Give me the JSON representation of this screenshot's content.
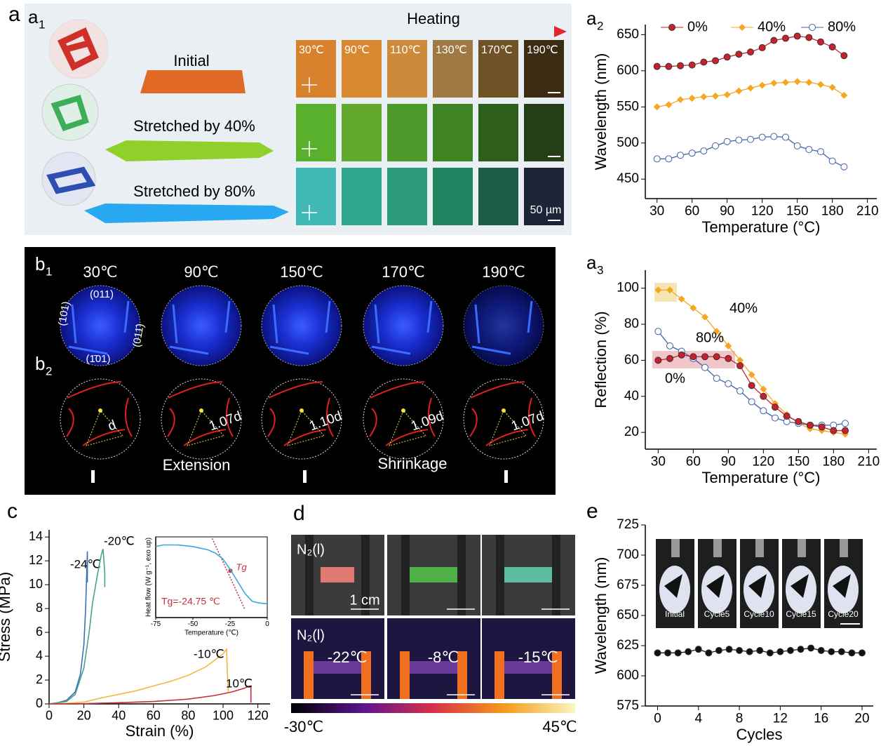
{
  "panel_labels": [
    {
      "text": "a"
    },
    {
      "text": "a",
      "sub": "1"
    },
    {
      "text": "a",
      "sub": "2"
    },
    {
      "text": "a",
      "sub": "3"
    },
    {
      "text": "b"
    },
    {
      "text": "b",
      "sub": "1"
    },
    {
      "text": "b",
      "sub": "2"
    },
    {
      "text": "c"
    },
    {
      "text": "d"
    },
    {
      "text": "e"
    }
  ],
  "panel_a1": {
    "heating": "Heating",
    "temperatures": [
      "30℃",
      "90℃",
      "110℃",
      "130℃",
      "170℃",
      "190℃"
    ],
    "samples": [
      "Initial",
      "Stretched by 40%",
      "Stretched by 80%"
    ],
    "scale_bar": "50 µm"
  },
  "panel_b": {
    "temperatures": [
      "30℃",
      "90℃",
      "150℃",
      "170℃",
      "190℃"
    ],
    "planes": [
      "(011)",
      "(101)",
      "(011̄)",
      "(1̄01)"
    ],
    "spacings": [
      "d",
      "1.07d",
      "1.10d",
      "1.09d",
      "1.07d"
    ],
    "extension": "Extension",
    "shrinkage": "Shrinkage"
  },
  "panel_d": {
    "atmosphere": [
      "N₂(l)",
      "N₂(l)"
    ],
    "scale_bar": "1 cm",
    "temperatures": [
      "-22℃",
      "-8℃",
      "-15℃"
    ],
    "colorbar": [
      "-30℃",
      "45℃"
    ]
  },
  "panel_e_photos": [
    "Initial",
    "Cycle5",
    "Cycle10",
    "Cycle15",
    "Cycle20"
  ],
  "chart_data": [
    {
      "type": "line",
      "xlabel": "Temperature (°C)",
      "ylabel": "Wavelength (nm)",
      "legend": "top",
      "xlim": [
        20,
        218
      ],
      "ylim": [
        423,
        664
      ],
      "xticks": [
        30,
        60,
        90,
        120,
        150,
        180,
        210
      ],
      "yticks": [
        450,
        500,
        550,
        600,
        650
      ],
      "x": [
        30,
        40,
        50,
        60,
        70,
        80,
        90,
        100,
        110,
        120,
        130,
        140,
        150,
        160,
        170,
        180,
        190
      ],
      "series": [
        {
          "name": "0%",
          "color": "#c8202e",
          "marker": "circle",
          "values": [
            606,
            606,
            607,
            608,
            612,
            614,
            619,
            623,
            626,
            632,
            642,
            645,
            648,
            646,
            640,
            633,
            621
          ]
        },
        {
          "name": "40%",
          "color": "#f5a623",
          "marker": "diamond",
          "values": [
            550,
            553,
            560,
            562,
            564,
            565,
            567,
            572,
            576,
            580,
            583,
            584,
            585,
            584,
            581,
            577,
            566
          ]
        },
        {
          "name": "80%",
          "color": "#3d5fa8",
          "marker": "open-circle",
          "values": [
            478,
            478,
            483,
            486,
            489,
            496,
            502,
            504,
            505,
            508,
            509,
            508,
            496,
            491,
            488,
            475,
            467
          ]
        }
      ]
    },
    {
      "type": "line",
      "xlabel": "Temperature (°C)",
      "ylabel": "Reflection (%)",
      "legend": "inline",
      "xlim": [
        19,
        217
      ],
      "ylim": [
        10.7,
        110
      ],
      "xticks": [
        30,
        60,
        90,
        120,
        150,
        180,
        210
      ],
      "yticks": [
        20,
        40,
        60,
        80,
        100
      ],
      "x": [
        30,
        40,
        50,
        60,
        70,
        80,
        90,
        100,
        110,
        120,
        130,
        140,
        150,
        160,
        170,
        180,
        190
      ],
      "series": [
        {
          "name": "40%",
          "color": "#f5a623",
          "marker": "diamond",
          "values": [
            99,
            99,
            94,
            89,
            84,
            76,
            68,
            60,
            52,
            44,
            36,
            30,
            25,
            22,
            21,
            20,
            19
          ]
        },
        {
          "name": "80%",
          "color": "#3d5fa8",
          "marker": "open-circle",
          "values": [
            76,
            68,
            65,
            61,
            56,
            50,
            47,
            43,
            37,
            32,
            28,
            26,
            25,
            24,
            24,
            24,
            25
          ]
        },
        {
          "name": "0%",
          "color": "#c8202e",
          "marker": "circle",
          "values": [
            60,
            61,
            63,
            62,
            62,
            62,
            61,
            57,
            46,
            40,
            34,
            29,
            26,
            24,
            23,
            21,
            21
          ]
        }
      ]
    },
    {
      "type": "line",
      "xlabel": "Strain (%)",
      "ylabel": "Stress (MPa)",
      "legend": "inline",
      "xlim": [
        0,
        127
      ],
      "ylim": [
        0,
        14.6
      ],
      "xticks": [
        0,
        20,
        40,
        60,
        80,
        100,
        120
      ],
      "yticks": [
        0,
        2,
        4,
        6,
        8,
        10,
        12,
        14
      ],
      "series": [
        {
          "name": "-24℃",
          "color": "#3d6fb6",
          "marker": "none",
          "x": [
            0,
            5,
            10,
            15,
            18,
            20,
            21,
            22,
            22
          ],
          "values": [
            0,
            0.1,
            0.3,
            1,
            2.5,
            5,
            8,
            12.8,
            10.2
          ]
        },
        {
          "name": "-20℃",
          "color": "#4aa08a",
          "marker": "none",
          "x": [
            0,
            10,
            15,
            20,
            23,
            25,
            28,
            30,
            31,
            32,
            32
          ],
          "values": [
            0,
            0.2,
            0.8,
            3,
            6,
            8.5,
            11,
            12.5,
            13,
            11,
            9.8
          ]
        },
        {
          "name": "-10℃",
          "color": "#f5b642",
          "marker": "none",
          "x": [
            0,
            10,
            20,
            30,
            40,
            50,
            60,
            70,
            80,
            90,
            100,
            102,
            102.5,
            103
          ],
          "values": [
            0,
            0.05,
            0.15,
            0.5,
            0.8,
            1.1,
            1.5,
            1.9,
            2.4,
            3.1,
            4.2,
            4.6,
            2.5,
            1
          ]
        },
        {
          "name": "10℃",
          "color": "#c0323a",
          "marker": "none",
          "x": [
            0,
            20,
            40,
            60,
            80,
            95,
            105,
            112,
            115,
            116,
            116
          ],
          "values": [
            0,
            0.02,
            0.1,
            0.2,
            0.4,
            0.7,
            1,
            1.3,
            1.5,
            1.5,
            0.1
          ]
        }
      ]
    },
    {
      "type": "line",
      "xlabel": "Temperature (℃)",
      "ylabel": "Heat flow (W g⁻¹, exo up)",
      "legend": "none",
      "annotations": [
        "Tg",
        "Tg=-24.75 ℃"
      ],
      "xlim": [
        -75,
        0
      ],
      "ylim": [
        0,
        1
      ],
      "xticks": [
        -75,
        -50,
        -25,
        0
      ],
      "yticks": [],
      "x": [
        -75,
        -70,
        -60,
        -50,
        -40,
        -35,
        -30,
        -25,
        -20,
        -15,
        -10,
        -5,
        0
      ],
      "series": [
        {
          "color": "#3aa6dc",
          "marker": "none",
          "values": [
            0.88,
            0.9,
            0.9,
            0.88,
            0.84,
            0.8,
            0.73,
            0.6,
            0.45,
            0.3,
            0.2,
            0.18,
            0.17
          ]
        }
      ]
    },
    {
      "type": "line",
      "xlabel": "Cycles",
      "ylabel": "Wavelength (nm)",
      "legend": "none",
      "xlim": [
        -1.2,
        21.1
      ],
      "ylim": [
        575,
        725
      ],
      "xticks": [
        0,
        4,
        8,
        12,
        16,
        20
      ],
      "yticks": [
        575,
        600,
        625,
        650,
        675,
        700,
        725
      ],
      "x": [
        0,
        1,
        2,
        3,
        4,
        5,
        6,
        7,
        8,
        9,
        10,
        11,
        12,
        13,
        14,
        15,
        16,
        17,
        18,
        19,
        20
      ],
      "series": [
        {
          "color": "#111111",
          "marker": "circle",
          "values": [
            619,
            619,
            619,
            620,
            622,
            619,
            621,
            622,
            621,
            620,
            621,
            619,
            620,
            621,
            622,
            623,
            621,
            620,
            620,
            619,
            619
          ]
        }
      ]
    }
  ]
}
